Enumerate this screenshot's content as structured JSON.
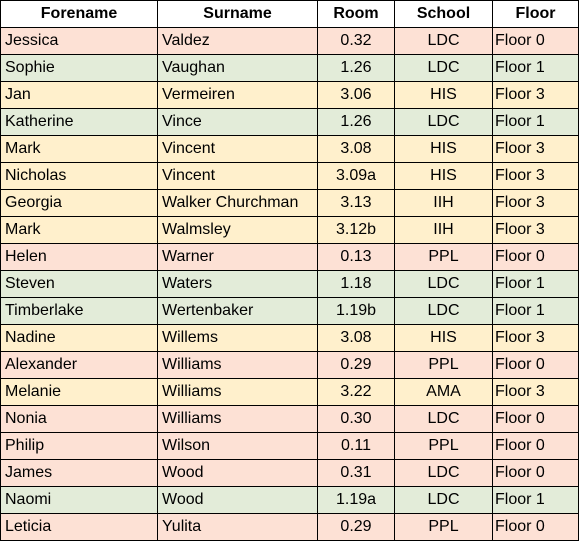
{
  "columns": [
    "Forename",
    "Surname",
    "Room",
    "School",
    "Floor"
  ],
  "colors": {
    "pink": "#fde1d5",
    "green": "#e3ecd9",
    "yellow": "#fff0cc"
  },
  "rows": [
    {
      "forename": "Jessica",
      "surname": "Valdez",
      "room": "0.32",
      "school": "LDC",
      "floor": "Floor 0",
      "color": "pink"
    },
    {
      "forename": "Sophie",
      "surname": "Vaughan",
      "room": "1.26",
      "school": "LDC",
      "floor": "Floor 1",
      "color": "green"
    },
    {
      "forename": "Jan",
      "surname": "Vermeiren",
      "room": "3.06",
      "school": "HIS",
      "floor": "Floor 3",
      "color": "yellow"
    },
    {
      "forename": "Katherine",
      "surname": "Vince",
      "room": "1.26",
      "school": "LDC",
      "floor": "Floor 1",
      "color": "green"
    },
    {
      "forename": "Mark",
      "surname": "Vincent",
      "room": "3.08",
      "school": "HIS",
      "floor": "Floor 3",
      "color": "yellow"
    },
    {
      "forename": "Nicholas",
      "surname": "Vincent",
      "room": "3.09a",
      "school": "HIS",
      "floor": "Floor 3",
      "color": "yellow"
    },
    {
      "forename": "Georgia",
      "surname": "Walker Churchman",
      "room": "3.13",
      "school": "IIH",
      "floor": "Floor 3",
      "color": "yellow"
    },
    {
      "forename": "Mark",
      "surname": "Walmsley",
      "room": "3.12b",
      "school": "IIH",
      "floor": "Floor 3",
      "color": "yellow"
    },
    {
      "forename": "Helen",
      "surname": "Warner",
      "room": "0.13",
      "school": "PPL",
      "floor": "Floor 0",
      "color": "pink"
    },
    {
      "forename": "Steven",
      "surname": "Waters",
      "room": "1.18",
      "school": "LDC",
      "floor": "Floor 1",
      "color": "green"
    },
    {
      "forename": "Timberlake",
      "surname": "Wertenbaker",
      "room": "1.19b",
      "school": "LDC",
      "floor": "Floor 1",
      "color": "green"
    },
    {
      "forename": "Nadine",
      "surname": "Willems",
      "room": "3.08",
      "school": "HIS",
      "floor": "Floor 3",
      "color": "yellow"
    },
    {
      "forename": "Alexander",
      "surname": "Williams",
      "room": "0.29",
      "school": "PPL",
      "floor": "Floor 0",
      "color": "pink"
    },
    {
      "forename": "Melanie",
      "surname": "Williams",
      "room": "3.22",
      "school": "AMA",
      "floor": "Floor 3",
      "color": "yellow"
    },
    {
      "forename": "Nonia",
      "surname": "Williams",
      "room": "0.30",
      "school": "LDC",
      "floor": "Floor 0",
      "color": "pink"
    },
    {
      "forename": "Philip",
      "surname": "Wilson",
      "room": "0.11",
      "school": "PPL",
      "floor": "Floor 0",
      "color": "pink"
    },
    {
      "forename": "James",
      "surname": "Wood",
      "room": "0.31",
      "school": "LDC",
      "floor": "Floor 0",
      "color": "pink"
    },
    {
      "forename": "Naomi",
      "surname": "Wood",
      "room": "1.19a",
      "school": "LDC",
      "floor": "Floor 1",
      "color": "green"
    },
    {
      "forename": "Leticia",
      "surname": "Yulita",
      "room": "0.29",
      "school": "PPL",
      "floor": "Floor 0",
      "color": "pink"
    }
  ]
}
